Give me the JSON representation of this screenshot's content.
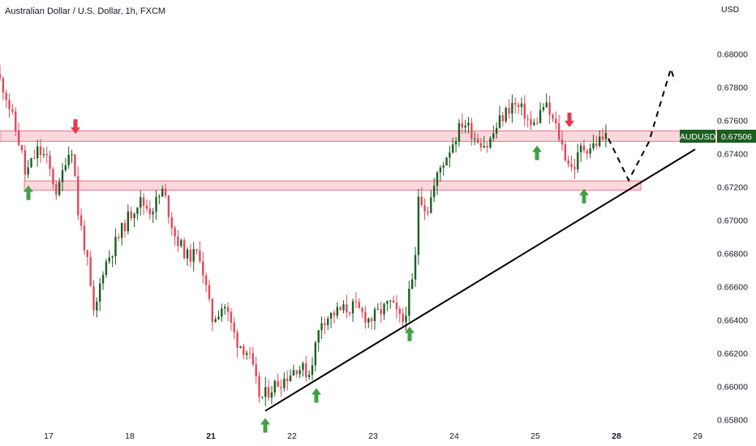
{
  "header": {
    "title": "Australian Dollar / U.S. Dollar, 1h, FXCM"
  },
  "chart_data": {
    "type": "candlestick",
    "currency": "USD",
    "y_ticks": [
      0.658,
      0.66,
      0.662,
      0.664,
      0.666,
      0.668,
      0.67,
      0.672,
      0.674,
      0.676,
      0.678,
      0.68
    ],
    "y_tick_labels": [
      "0.65800",
      "0.66000",
      "0.66200",
      "0.66400",
      "0.66600",
      "0.66800",
      "0.67000",
      "0.67200",
      "0.67400",
      "0.67600",
      "0.67800",
      "0.68000"
    ],
    "ylim": [
      0.6571,
      0.6815
    ],
    "x_ticks": [
      {
        "label": "17",
        "pos": 0.6,
        "bold": false
      },
      {
        "label": "18",
        "pos": 1.6,
        "bold": false
      },
      {
        "label": "21",
        "pos": 2.6,
        "bold": true
      },
      {
        "label": "22",
        "pos": 3.6,
        "bold": false
      },
      {
        "label": "23",
        "pos": 4.6,
        "bold": false
      },
      {
        "label": "24",
        "pos": 5.6,
        "bold": false
      },
      {
        "label": "25",
        "pos": 6.6,
        "bold": false
      },
      {
        "label": "28",
        "pos": 7.6,
        "bold": true
      },
      {
        "label": "29",
        "pos": 8.6,
        "bold": false
      }
    ],
    "xlim": [
      0,
      9.3
    ],
    "key_points": [
      [
        0.0,
        0.6788
      ],
      [
        0.1,
        0.6778
      ],
      [
        0.3,
        0.6742
      ],
      [
        0.35,
        0.6727
      ],
      [
        0.5,
        0.6742
      ],
      [
        0.6,
        0.6738
      ],
      [
        0.75,
        0.6715
      ],
      [
        0.85,
        0.6738
      ],
      [
        0.93,
        0.6744
      ],
      [
        1.0,
        0.6705
      ],
      [
        1.1,
        0.668
      ],
      [
        1.2,
        0.664
      ],
      [
        1.3,
        0.667
      ],
      [
        1.45,
        0.6685
      ],
      [
        1.6,
        0.67
      ],
      [
        1.75,
        0.6712
      ],
      [
        1.9,
        0.6706
      ],
      [
        2.05,
        0.6718
      ],
      [
        2.2,
        0.669
      ],
      [
        2.35,
        0.6678
      ],
      [
        2.5,
        0.668
      ],
      [
        2.65,
        0.664
      ],
      [
        2.8,
        0.665
      ],
      [
        2.95,
        0.6628
      ],
      [
        3.1,
        0.662
      ],
      [
        3.25,
        0.6592
      ],
      [
        3.4,
        0.66
      ],
      [
        3.55,
        0.6605
      ],
      [
        3.7,
        0.6612
      ],
      [
        3.85,
        0.6608
      ],
      [
        4.0,
        0.664
      ],
      [
        4.2,
        0.6645
      ],
      [
        4.4,
        0.6648
      ],
      [
        4.6,
        0.664
      ],
      [
        4.85,
        0.665
      ],
      [
        5.0,
        0.6638
      ],
      [
        5.15,
        0.6668
      ],
      [
        5.2,
        0.6718
      ],
      [
        5.3,
        0.6705
      ],
      [
        5.45,
        0.673
      ],
      [
        5.6,
        0.6745
      ],
      [
        5.75,
        0.676
      ],
      [
        5.9,
        0.675
      ],
      [
        6.05,
        0.6745
      ],
      [
        6.2,
        0.676
      ],
      [
        6.35,
        0.677
      ],
      [
        6.5,
        0.6765
      ],
      [
        6.6,
        0.6755
      ],
      [
        6.75,
        0.677
      ],
      [
        6.9,
        0.6755
      ],
      [
        7.0,
        0.674
      ],
      [
        7.1,
        0.673
      ],
      [
        7.2,
        0.6743
      ],
      [
        7.35,
        0.6745
      ],
      [
        7.45,
        0.6749
      ],
      [
        7.5,
        0.67506
      ]
    ],
    "resistance_zone": {
      "y_top": 0.67538,
      "y_bottom": 0.67475,
      "x_start": 0.0,
      "x_end": 9.3
    },
    "support_zone": {
      "y_top": 0.67237,
      "y_bottom": 0.67182,
      "x_start": 0.3,
      "x_end": 7.9
    },
    "trendline": {
      "x1": 3.27,
      "y1": 0.65853,
      "x2": 8.57,
      "y2": 0.67427
    },
    "projection_path": [
      [
        7.5,
        0.67492
      ],
      [
        7.75,
        0.67241
      ],
      [
        8.0,
        0.67472
      ],
      [
        8.27,
        0.67912
      ],
      [
        8.32,
        0.67836
      ]
    ],
    "last_price": {
      "value": 0.67506,
      "label": "0.67506",
      "symbol": "AUDUSD"
    },
    "up_color": "#1b5e20",
    "down_color": "#e0485a",
    "buy_markers": [
      {
        "x": 0.35,
        "y": 0.6721
      },
      {
        "x": 3.27,
        "y": 0.6581
      },
      {
        "x": 3.9,
        "y": 0.6599
      },
      {
        "x": 5.05,
        "y": 0.6636
      },
      {
        "x": 6.62,
        "y": 0.6745
      },
      {
        "x": 7.2,
        "y": 0.6719
      }
    ],
    "sell_markers": [
      {
        "x": 0.93,
        "y": 0.6752
      },
      {
        "x": 7.02,
        "y": 0.6756
      }
    ]
  }
}
